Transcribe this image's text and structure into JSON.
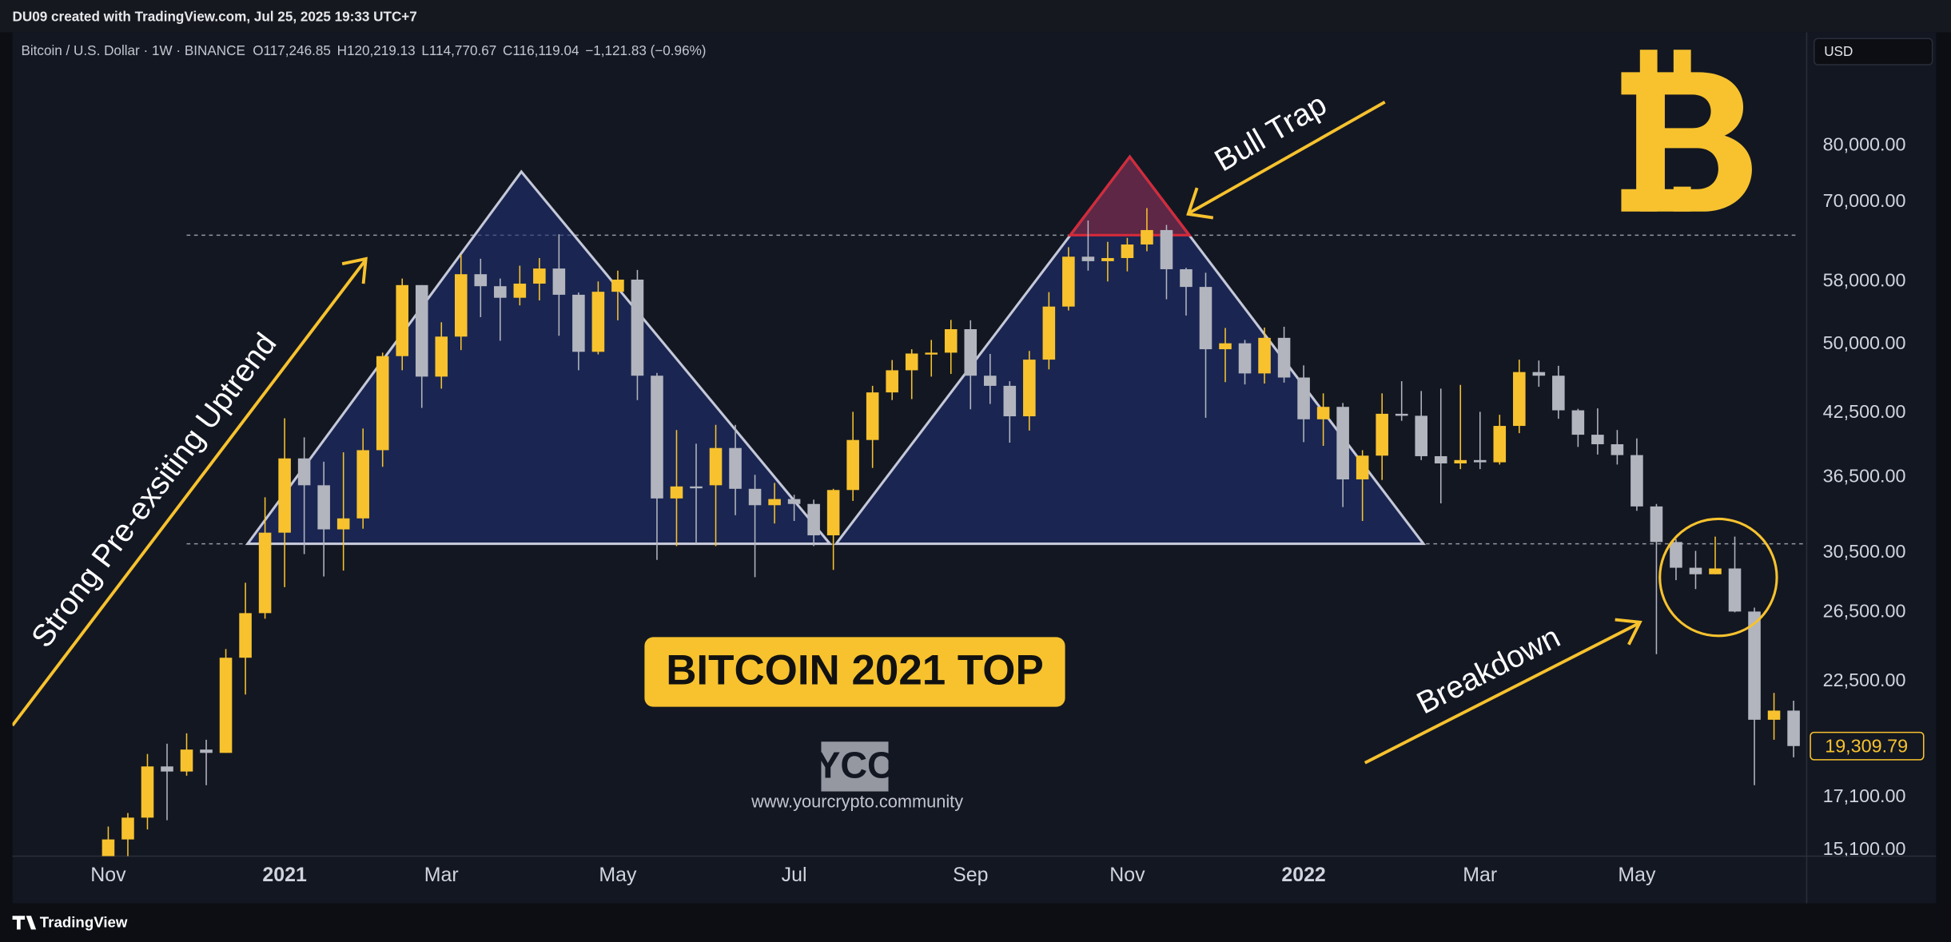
{
  "header": "DU09 created with TradingView.com, Jul 25, 2025 19:33 UTC+7",
  "footer": "TradingView",
  "currency": "USD",
  "symbol": "Bitcoin / U.S. Dollar · 1W · BINANCE",
  "quote": [
    "O117,246.85",
    "H120,219.13",
    "L114,770.67",
    "C116,119.04",
    "−1,121.83 (−0.96%)"
  ],
  "annotations": {
    "uptrend": "Strong Pre-exsiting Uptrend",
    "bull_trap": "Bull Trap",
    "breakdown": "Breakdown",
    "banner": "BITCOIN 2021 TOP",
    "logo": "YCC",
    "url": "www.yourcrypto.community"
  },
  "chart_data": {
    "type": "candlestick",
    "log_scale": true,
    "grid": false,
    "up_color": "#f7c22e",
    "down_color": "#b2b5be",
    "categories": [
      "Nov",
      null,
      null,
      null,
      null,
      null,
      null,
      null,
      null,
      "2021",
      null,
      null,
      null,
      null,
      null,
      null,
      null,
      "Mar",
      null,
      null,
      null,
      null,
      null,
      null,
      null,
      null,
      "May",
      null,
      null,
      null,
      null,
      null,
      null,
      null,
      null,
      "Jul",
      null,
      null,
      null,
      null,
      null,
      null,
      null,
      null,
      "Sep",
      null,
      null,
      null,
      null,
      null,
      null,
      null,
      "Nov",
      null,
      null,
      null,
      null,
      null,
      null,
      null,
      null,
      "2022",
      null,
      null,
      null,
      null,
      null,
      null,
      null,
      null,
      "Mar",
      null,
      null,
      null,
      null,
      null,
      null,
      null,
      "May",
      null,
      null,
      null,
      null,
      null,
      null,
      null,
      null
    ],
    "open": [
      13761,
      15480,
      16300,
      18400,
      18180,
      19150,
      19000,
      23800,
      26450,
      32000,
      38150,
      35800,
      32250,
      33100,
      38900,
      48600,
      57500,
      46300,
      50900,
      59000,
      57350,
      55800,
      57700,
      59800,
      56200,
      49100,
      56600,
      58250,
      46400,
      34700,
      35700,
      35800,
      39100,
      35500,
      34150,
      34650,
      34250,
      31800,
      35400,
      39850,
      44600,
      47000,
      48900,
      49000,
      51800,
      46400,
      45300,
      42150,
      48200,
      54650,
      61500,
      60850,
      61300,
      63300,
      65500,
      59700,
      57250,
      49400,
      50100,
      46650,
      50750,
      46200,
      41850,
      43100,
      36300,
      38400,
      42400,
      42200,
      38350,
      37700,
      38000,
      37800,
      41200,
      46800,
      46400,
      42750,
      40350,
      39450,
      38450,
      34050,
      31300,
      29450,
      29000,
      29400,
      26550,
      20550,
      21000
    ],
    "high": [
      15960,
      16480,
      18950,
      19418,
      19900,
      19600,
      24295,
      28422,
      34800,
      41950,
      40100,
      37850,
      38700,
      40950,
      49000,
      58400,
      57500,
      52650,
      61800,
      61200,
      58400,
      60200,
      61300,
      64850,
      56500,
      58000,
      59500,
      59600,
      46700,
      40800,
      39500,
      41300,
      41300,
      36700,
      36000,
      35000,
      34600,
      35500,
      42600,
      45300,
      48150,
      49400,
      50500,
      52950,
      52900,
      48850,
      45800,
      49200,
      56550,
      62900,
      67000,
      63700,
      64300,
      69000,
      66300,
      59900,
      59200,
      51950,
      50500,
      52000,
      52100,
      47550,
      44500,
      43500,
      38900,
      44500,
      45800,
      44750,
      45000,
      45400,
      42600,
      42300,
      48200,
      48100,
      47500,
      42900,
      42950,
      40800,
      40000,
      34250,
      31500,
      30650,
      31700,
      31700,
      26800,
      21900,
      21500
    ],
    "low": [
      13525,
      14800,
      15850,
      16200,
      18000,
      17600,
      19000,
      21815,
      26100,
      28130,
      30420,
      28850,
      29250,
      32300,
      37400,
      47000,
      43000,
      45000,
      49300,
      53300,
      50400,
      54800,
      55450,
      51000,
      47000,
      48800,
      52900,
      43800,
      30000,
      31000,
      31200,
      31000,
      33350,
      28800,
      32700,
      32900,
      31000,
      29300,
      34500,
      37300,
      43800,
      43900,
      46300,
      46600,
      42850,
      43400,
      39600,
      40750,
      47100,
      54150,
      59500,
      58000,
      59400,
      62300,
      55600,
      53500,
      42000,
      45700,
      45450,
      45550,
      45650,
      39650,
      39300,
      34000,
      32900,
      36250,
      41700,
      38000,
      34300,
      37200,
      37200,
      37600,
      40500,
      45200,
      41900,
      39200,
      38500,
      37600,
      33700,
      24000,
      28600,
      28000,
      29000,
      26500,
      17600,
      19600,
      18800
    ],
    "close": [
      15480,
      16300,
      18400,
      18180,
      19150,
      19000,
      23800,
      26450,
      32000,
      38150,
      35800,
      32250,
      33100,
      38900,
      48600,
      57500,
      46300,
      50900,
      59000,
      57350,
      55800,
      57700,
      59800,
      56200,
      49100,
      56600,
      58250,
      46400,
      34700,
      35700,
      35600,
      39100,
      35500,
      34150,
      34650,
      34250,
      31800,
      35400,
      39850,
      44600,
      47000,
      48900,
      49000,
      51800,
      46400,
      45300,
      42150,
      48200,
      54650,
      61500,
      60850,
      61300,
      63300,
      65500,
      59700,
      57250,
      49400,
      50100,
      46650,
      50750,
      46200,
      41850,
      43100,
      36300,
      38400,
      42400,
      42200,
      38350,
      37700,
      38000,
      37800,
      41200,
      46800,
      46400,
      42750,
      40350,
      39450,
      38450,
      34050,
      31300,
      29450,
      29000,
      29400,
      26550,
      20550,
      21000,
      19309.79
    ],
    "close_label": "19,309.79",
    "ylim": [
      14880,
      104590
    ],
    "yticks": [
      {
        "value": 15100,
        "label": "15,100.00"
      },
      {
        "value": 17100,
        "label": "17,100.00"
      },
      {
        "value": 22500,
        "label": "22,500.00"
      },
      {
        "value": 26500,
        "label": "26,500.00"
      },
      {
        "value": 30500,
        "label": "30,500.00"
      },
      {
        "value": 36500,
        "label": "36,500.00"
      },
      {
        "value": 42500,
        "label": "42,500.00"
      },
      {
        "value": 50000,
        "label": "50,000.00"
      },
      {
        "value": 58000,
        "label": "58,000.00"
      },
      {
        "value": 70000,
        "label": "70,000.00"
      },
      {
        "value": 80000,
        "label": "80,000.00"
      }
    ]
  }
}
